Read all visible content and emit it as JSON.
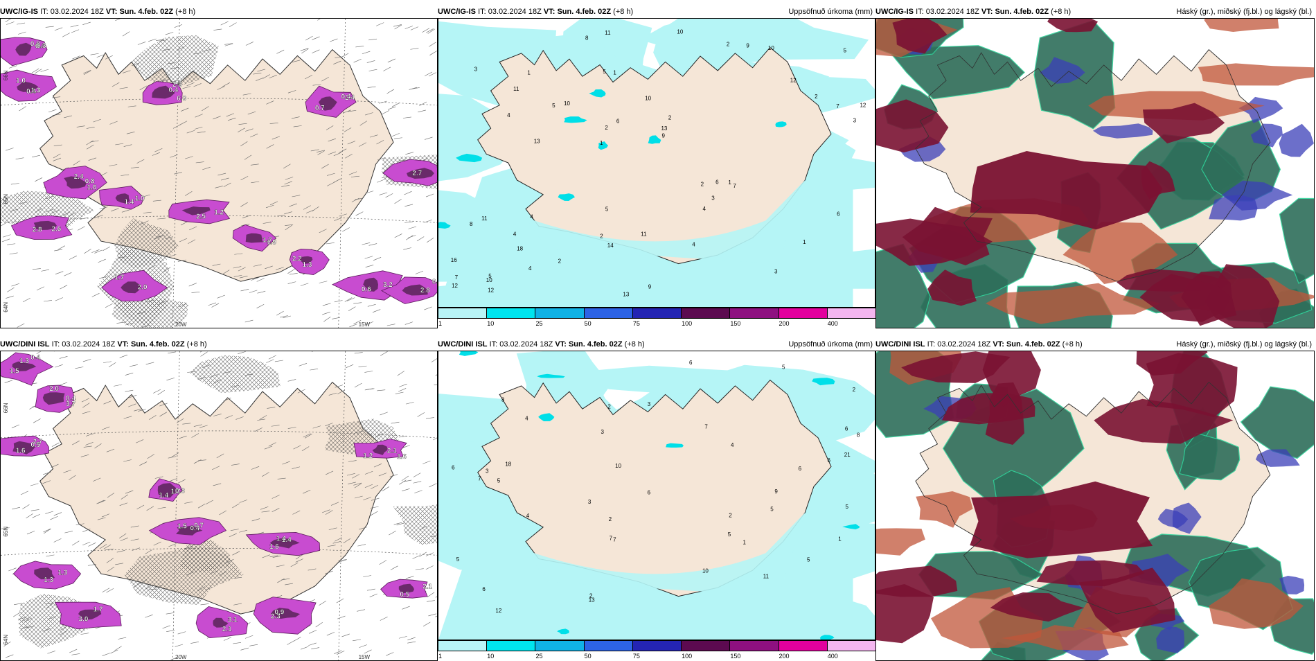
{
  "rows": [
    {
      "model": "UWC/IG-IS",
      "it_label": "IT:",
      "it_value": "03.02.2024 18Z",
      "vt_label": "VT:",
      "vt_value": "Sun. 4.feb. 02Z",
      "lead": "(+8 h)"
    },
    {
      "model": "UWC/DINI ISL",
      "it_label": "IT:",
      "it_value": "03.02.2024 18Z",
      "vt_label": "VT:",
      "vt_value": "Sun. 4.feb. 02Z",
      "lead": "(+8 h)"
    }
  ],
  "panel_titles": {
    "precip": "Uppsöfnuð úrkoma (mm)",
    "clouds": "Háský (gr.), miðský (fj.bl.) og lágský (bl.)"
  },
  "map_labels": {
    "lon_20w": "20W",
    "lon_15w": "15W",
    "lat_66n": "66N",
    "lat_65n": "65N",
    "lat_64n": "64N"
  },
  "precip_legend": {
    "ticks": [
      "1",
      "10",
      "25",
      "50",
      "75",
      "100",
      "150",
      "200",
      "400"
    ],
    "colors": [
      "#b8f4f7",
      "#00e5ef",
      "#10b2e6",
      "#2d63e6",
      "#2424b3",
      "#5c0a50",
      "#8e1080",
      "#e3009e",
      "#f4b6f0"
    ]
  },
  "colors": {
    "land": "#f5e6d7",
    "precip_light": "#b5f5f6",
    "precip_med": "#00dfe8",
    "purple": "#c84cd0",
    "purple_dark": "#6a2a6a",
    "cloud_low": "#2e6e5a",
    "cloud_mid": "#3b3fb8",
    "cloud_high": "#7a1232"
  },
  "row0_col0_values": [
    "0.4",
    "0.4",
    "2.3",
    "2.4",
    "0.8",
    "1.4",
    "1.2",
    "1.7",
    "1.3",
    "0.6",
    "2.6",
    "2.0",
    "1.7",
    "0.6",
    "0.8",
    "1.3",
    "6.0",
    "0.4",
    "2.4",
    "1.0",
    "2.5",
    "1.9",
    "2.2",
    "3.2",
    "2.8",
    "1.7",
    "2.7",
    "2.8",
    "0.3",
    "1.0",
    "0.4",
    "0.7",
    "1.6"
  ],
  "row0_col1_values": [
    "5",
    "5",
    "10",
    "11",
    "10",
    "16",
    "18",
    "1",
    "2",
    "7",
    "3",
    "11",
    "3",
    "2",
    "2",
    "1",
    "2",
    "2",
    "1",
    "2",
    "4",
    "3",
    "1",
    "1",
    "9",
    "5",
    "4",
    "4",
    "4",
    "7",
    "13",
    "7",
    "14",
    "9",
    "8",
    "12",
    "5",
    "3",
    "4",
    "4",
    "12",
    "12",
    "11",
    "10",
    "13",
    "13",
    "12",
    "11",
    "9",
    "10",
    "10",
    "8",
    "6",
    "6",
    "5",
    "2",
    "6"
  ],
  "row1_col0_values": [
    "1.5",
    "3.7",
    "1.6",
    "1.7",
    "0.4",
    "1.4",
    "1.2",
    "1.3",
    "1.7",
    "2.1",
    "0.9",
    "0.5",
    "0.4",
    "0.4",
    "0.5",
    "0.3",
    "1.5",
    "1.4",
    "1.6",
    "1.3",
    "3.0",
    "3.1",
    "2.3",
    "2.1",
    "1.3",
    "2.0",
    "2.7",
    "1.4",
    "0.7",
    "1.6",
    "2.1"
  ],
  "row1_col1_values": [
    "12",
    "6",
    "7",
    "6",
    "5",
    "5",
    "2",
    "1",
    "2",
    "1",
    "2",
    "3",
    "2",
    "4",
    "5",
    "5",
    "6",
    "5",
    "4",
    "4",
    "6",
    "5",
    "3",
    "3",
    "3",
    "3",
    "18",
    "13",
    "10",
    "9",
    "8",
    "10",
    "11",
    "7",
    "7",
    "7",
    "6",
    "6",
    "6",
    "5",
    "2",
    "21"
  ]
}
